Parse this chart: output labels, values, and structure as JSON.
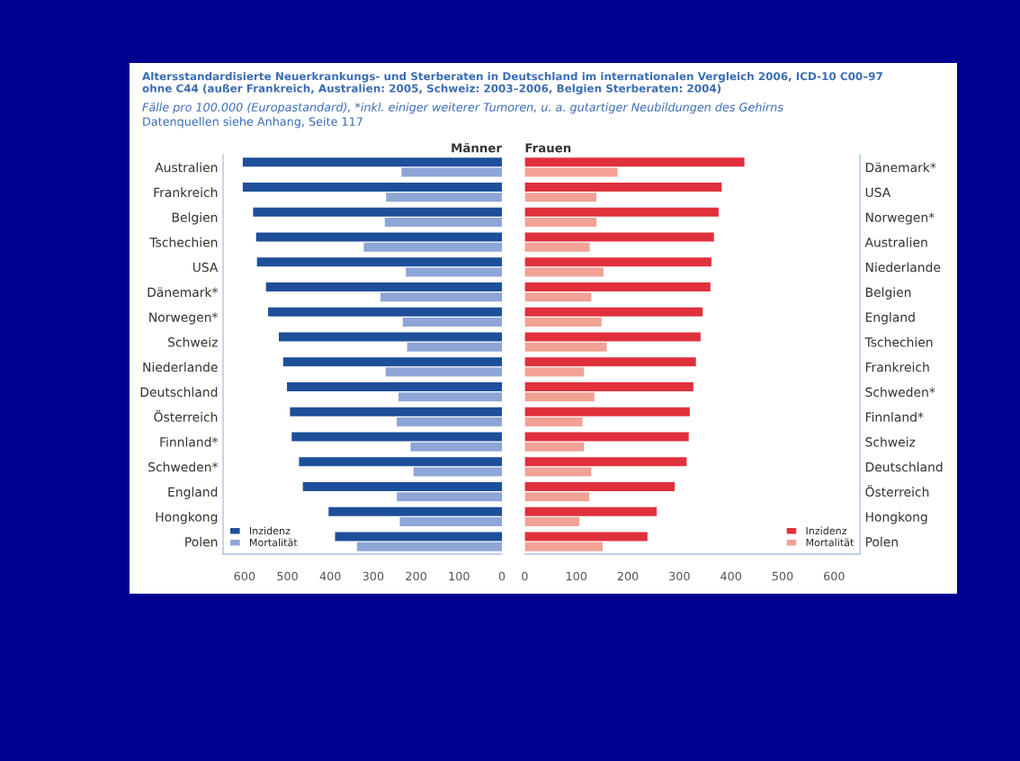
{
  "chart_data": [
    {
      "type": "other",
      "title": "Altersstandardisierte Neuerkrankungs- und Sterberaten in Deutschland im internationalen Vergleich 2006, ICD-10 C00–97\nohne C44 (außer Frankreich, Australien: 2005, Schweiz: 2003–2006, Belgien Sterberaten: 2004)",
      "subtitle": "Fälle pro 100.000 (Europastandard), *inkl. einiger weiterer Tumoren, u. a. gutartiger Neubildungen des Gehirns",
      "annotations": [
        "Datenquellen siehe Anhang, Seite 117"
      ]
    },
    {
      "type": "bar",
      "orientation": "horizontal",
      "title": "Männer",
      "categories": [
        "Australien",
        "Frankreich",
        "Belgien",
        "Tschechien",
        "USA",
        "Dänemark*",
        "Norwegen*",
        "Schweiz",
        "Niederlande",
        "Deutschland",
        "Österreich",
        "Finnland*",
        "Schweden*",
        "England",
        "Hongkong",
        "Polen"
      ],
      "series": [
        {
          "name": "Inzidenz",
          "color": "#1d4f9a",
          "values": [
            604,
            604,
            580,
            573,
            571,
            550,
            545,
            520,
            510,
            501,
            494,
            490,
            473,
            464,
            404,
            389
          ]
        },
        {
          "name": "Mortalität",
          "color": "#8ea5d8",
          "values": [
            234,
            270,
            273,
            322,
            224,
            283,
            231,
            221,
            271,
            241,
            245,
            213,
            206,
            245,
            238,
            338
          ]
        }
      ],
      "xlim": [
        650,
        0
      ],
      "xticks": [
        600,
        500,
        400,
        300,
        200,
        100,
        0
      ],
      "legend": "bottom left"
    },
    {
      "type": "bar",
      "orientation": "horizontal",
      "title": "Frauen",
      "categories": [
        "Dänemark*",
        "USA",
        "Norwegen*",
        "Australien",
        "Niederlande",
        "Belgien",
        "England",
        "Tschechien",
        "Frankreich",
        "Schweden*",
        "Finnland*",
        "Schweiz",
        "Deutschland",
        "Österreich",
        "Hongkong",
        "Polen"
      ],
      "series": [
        {
          "name": "Inzidenz",
          "color": "#e0303c",
          "values": [
            426,
            382,
            376,
            367,
            362,
            360,
            345,
            341,
            332,
            327,
            320,
            318,
            314,
            291,
            256,
            238
          ]
        },
        {
          "name": "Mortalität",
          "color": "#f2a195",
          "values": [
            180,
            139,
            139,
            126,
            153,
            129,
            149,
            159,
            115,
            135,
            112,
            115,
            129,
            125,
            106,
            151
          ]
        }
      ],
      "xlim": [
        0,
        650
      ],
      "xticks": [
        0,
        100,
        200,
        300,
        400,
        500,
        600
      ],
      "legend": "bottom right"
    }
  ]
}
